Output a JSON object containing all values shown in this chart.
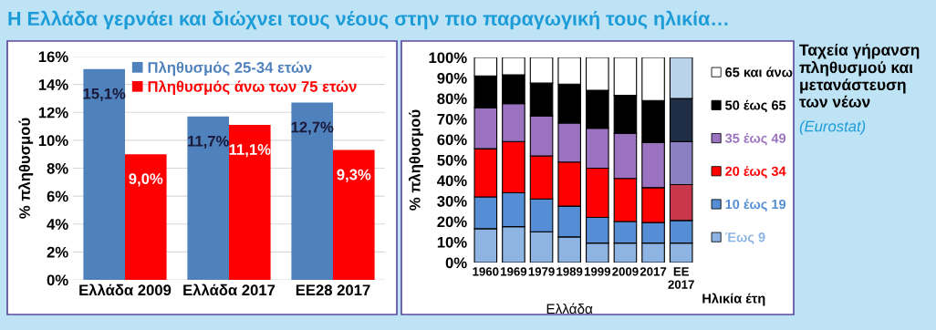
{
  "chart_data": [
    {
      "type": "bar",
      "title": "Η Ελλάδα γερνάει και διώχνει τους νέους στην πιο παραγωγική τους ηλικία…",
      "ylabel": "% πληθυσμού",
      "categories": [
        "Ελλάδα 2009",
        "Ελλάδα 2017",
        "ΕΕ28 2017"
      ],
      "series": [
        {
          "name": "Πληθυσμός 25-34 ετών",
          "color": "#4f81bd",
          "values": [
            15.1,
            11.7,
            12.7
          ],
          "value_labels": [
            "15,1%",
            "11,7%",
            "12,7%"
          ]
        },
        {
          "name": "Πληθυσμός άνω των 75 ετών",
          "color": "#ff0000",
          "values": [
            9.0,
            11.1,
            9.3
          ],
          "value_labels": [
            "9,0%",
            "11,1%",
            "9,3%"
          ]
        }
      ],
      "ylim": [
        0,
        16
      ],
      "yticks": [
        {
          "value": 0,
          "label": "0%"
        },
        {
          "value": 2,
          "label": "2%"
        },
        {
          "value": 4,
          "label": "4%"
        },
        {
          "value": 6,
          "label": "6%"
        },
        {
          "value": 8,
          "label": "8%"
        },
        {
          "value": 10,
          "label": "10%"
        },
        {
          "value": 12,
          "label": "12%"
        },
        {
          "value": 14,
          "label": "14%"
        },
        {
          "value": 16,
          "label": "16%"
        }
      ],
      "grid": "y",
      "legend": "top"
    },
    {
      "type": "bar",
      "stacked": true,
      "ylabel": "% πληθυσμού",
      "xlabel": "Ελλάδα",
      "legend_title": "Ηλικία έτη",
      "categories": [
        "1960",
        "1969",
        "1979",
        "1989",
        "1999",
        "2009",
        "2017",
        "ΕΕ\n2017"
      ],
      "series": [
        {
          "name": "Έως 9",
          "color": "#8db4e2",
          "colors": [
            "#8db4e2",
            "#8db4e2",
            "#8db4e2",
            "#8db4e2",
            "#8db4e2",
            "#8db4e2",
            "#8db4e2",
            "#8db4e2"
          ],
          "values": [
            16.5,
            17.5,
            15,
            12.5,
            9.5,
            9.5,
            9.5,
            9.5
          ]
        },
        {
          "name": "10 έως 19",
          "color": "#558ed5",
          "colors": [
            "#558ed5",
            "#558ed5",
            "#558ed5",
            "#558ed5",
            "#558ed5",
            "#558ed5",
            "#558ed5",
            "#558ed5"
          ],
          "values": [
            15.5,
            16.5,
            16,
            15,
            12.5,
            10.5,
            10,
            11
          ]
        },
        {
          "name": "20 έως 34",
          "color": "#ff0000",
          "colors": [
            "#ff0000",
            "#ff0000",
            "#ff0000",
            "#ff0000",
            "#ff0000",
            "#ff0000",
            "#ff0000",
            "#c8374a"
          ],
          "values": [
            23.5,
            25,
            21,
            21.5,
            24,
            21,
            17,
            17.5
          ]
        },
        {
          "name": "35 έως 49",
          "color": "#9b72c0",
          "colors": [
            "#9b72c0",
            "#9b72c0",
            "#9b72c0",
            "#9b72c0",
            "#9b72c0",
            "#9b72c0",
            "#9b72c0",
            "#8a7fc0"
          ],
          "values": [
            20,
            18.5,
            19.5,
            19,
            19.5,
            22,
            22,
            21
          ]
        },
        {
          "name": "50 έως 65",
          "color": "#000000",
          "colors": [
            "#000000",
            "#000000",
            "#000000",
            "#000000",
            "#000000",
            "#000000",
            "#000000",
            "#1f2d45"
          ],
          "values": [
            15.5,
            14,
            16,
            19,
            18.5,
            18.5,
            20.5,
            21
          ]
        },
        {
          "name": "65 και άνω",
          "color": "#ffffff",
          "colors": [
            "#ffffff",
            "#ffffff",
            "#ffffff",
            "#ffffff",
            "#ffffff",
            "#ffffff",
            "#ffffff",
            "#b8d3ea"
          ],
          "values": [
            9,
            8.5,
            12.5,
            13,
            16,
            18.5,
            21,
            20
          ]
        }
      ],
      "ylim": [
        0,
        100
      ],
      "yticks": [
        {
          "value": 0,
          "label": "0%"
        },
        {
          "value": 10,
          "label": "10%"
        },
        {
          "value": 20,
          "label": "20%"
        },
        {
          "value": 30,
          "label": "30%"
        },
        {
          "value": 40,
          "label": "40%"
        },
        {
          "value": 50,
          "label": "50%"
        },
        {
          "value": 60,
          "label": "60%"
        },
        {
          "value": 70,
          "label": "70%"
        },
        {
          "value": 80,
          "label": "80%"
        },
        {
          "value": 90,
          "label": "90%"
        },
        {
          "value": 100,
          "label": "100%"
        }
      ],
      "legend": "right",
      "annotations": [
        "Ταχεία γήρανση πληθυσμού και μετανάστευση των νέων",
        "(Eurostat)"
      ]
    }
  ]
}
